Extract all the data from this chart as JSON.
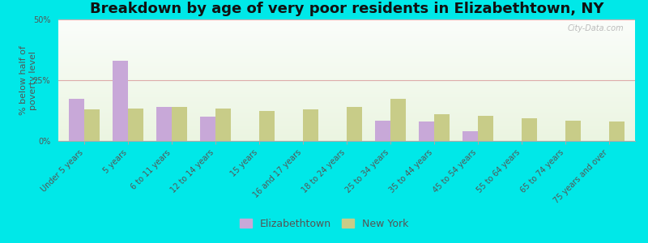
{
  "title": "Breakdown by age of very poor residents in Elizabethtown, NY",
  "ylabel": "% below half of\npoverty level",
  "categories": [
    "Under 5 years",
    "5 years",
    "6 to 11 years",
    "12 to 14 years",
    "15 years",
    "16 and 17 years",
    "18 to 24 years",
    "25 to 34 years",
    "35 to 44 years",
    "45 to 54 years",
    "55 to 64 years",
    "65 to 74 years",
    "75 years and over"
  ],
  "elizabethtown": [
    17.5,
    33.0,
    14.0,
    10.0,
    0,
    0,
    0,
    8.5,
    8.0,
    4.0,
    0,
    0,
    0
  ],
  "new_york": [
    13.0,
    13.5,
    14.0,
    13.5,
    12.5,
    13.0,
    14.0,
    17.5,
    11.0,
    10.5,
    9.5,
    8.5,
    8.0
  ],
  "elizabethtown_color": "#c8a8d8",
  "new_york_color": "#c8cc88",
  "outer_bg_color": "#00e8e8",
  "ylim": [
    0,
    50
  ],
  "yticks": [
    0,
    25,
    50
  ],
  "ytick_labels": [
    "0%",
    "25%",
    "50%"
  ],
  "bar_width": 0.35,
  "title_fontsize": 13,
  "axis_label_fontsize": 8,
  "tick_fontsize": 7,
  "legend_labels": [
    "Elizabethtown",
    "New York"
  ],
  "watermark": "City-Data.com"
}
